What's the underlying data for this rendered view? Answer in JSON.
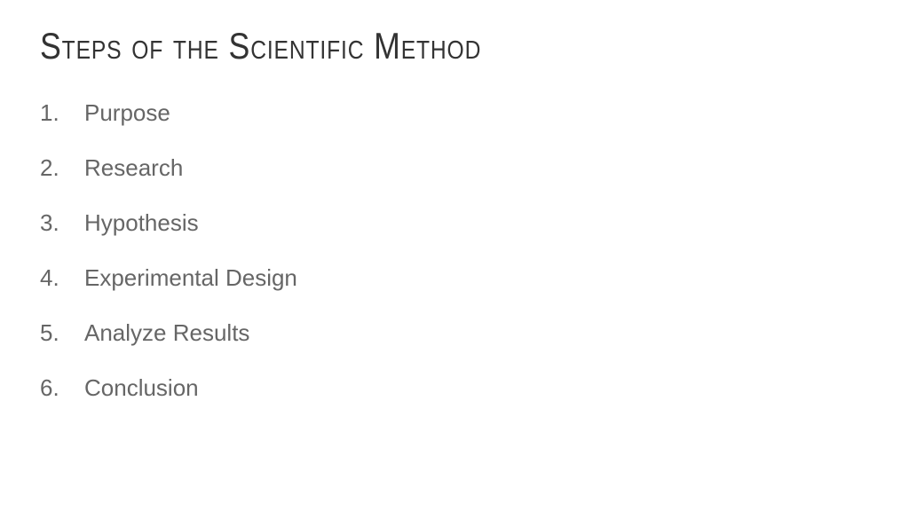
{
  "slide": {
    "title": "Steps of the Scientific Method",
    "items": [
      {
        "label": "Purpose"
      },
      {
        "label": "Research"
      },
      {
        "label": "Hypothesis"
      },
      {
        "label": "Experimental Design"
      },
      {
        "label": "Analyze Results"
      },
      {
        "label": "Conclusion"
      }
    ],
    "styling": {
      "background_color": "#ffffff",
      "title_color": "#333333",
      "title_fontsize": 42,
      "item_color": "#666666",
      "item_fontsize": 26,
      "item_spacing": 31
    }
  }
}
